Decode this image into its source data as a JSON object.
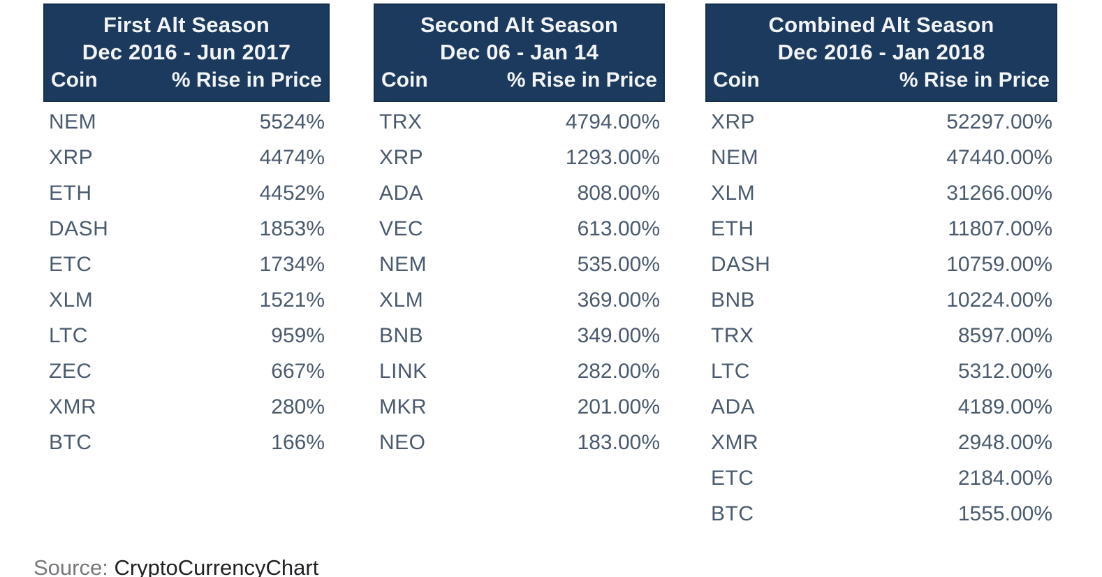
{
  "colors": {
    "header_bg": "#1B3A5E",
    "header_border": "#152F4D",
    "header_text": "#F2F4F6",
    "body_text": "#4A5A6E",
    "source_label_text": "#77787B",
    "source_link_text": "#202124",
    "source_link_underline": "#66C6A2",
    "page_bg": "#FFFFFF"
  },
  "tables": [
    {
      "title_line1": "First Alt Season",
      "title_line2": "Dec 2016 - Jun 2017",
      "col_coin": "Coin",
      "col_rise": "% Rise in Price",
      "rows": [
        {
          "coin": "NEM",
          "rise": "5524%"
        },
        {
          "coin": "XRP",
          "rise": "4474%"
        },
        {
          "coin": "ETH",
          "rise": "4452%"
        },
        {
          "coin": "DASH",
          "rise": "1853%"
        },
        {
          "coin": "ETC",
          "rise": "1734%"
        },
        {
          "coin": "XLM",
          "rise": "1521%"
        },
        {
          "coin": "LTC",
          "rise": "959%"
        },
        {
          "coin": "ZEC",
          "rise": "667%"
        },
        {
          "coin": "XMR",
          "rise": "280%"
        },
        {
          "coin": "BTC",
          "rise": "166%"
        }
      ]
    },
    {
      "title_line1": "Second Alt Season",
      "title_line2": "Dec 06 - Jan 14",
      "col_coin": "Coin",
      "col_rise": "% Rise in Price",
      "rows": [
        {
          "coin": "TRX",
          "rise": "4794.00%"
        },
        {
          "coin": "XRP",
          "rise": "1293.00%"
        },
        {
          "coin": "ADA",
          "rise": "808.00%"
        },
        {
          "coin": "VEC",
          "rise": "613.00%"
        },
        {
          "coin": "NEM",
          "rise": "535.00%"
        },
        {
          "coin": "XLM",
          "rise": "369.00%"
        },
        {
          "coin": "BNB",
          "rise": "349.00%"
        },
        {
          "coin": "LINK",
          "rise": "282.00%"
        },
        {
          "coin": "MKR",
          "rise": "201.00%"
        },
        {
          "coin": "NEO",
          "rise": "183.00%"
        }
      ]
    },
    {
      "title_line1": "Combined Alt Season",
      "title_line2": "Dec 2016 - Jan 2018",
      "col_coin": "Coin",
      "col_rise": "% Rise in Price",
      "rows": [
        {
          "coin": "XRP",
          "rise": "52297.00%"
        },
        {
          "coin": "NEM",
          "rise": "47440.00%"
        },
        {
          "coin": "XLM",
          "rise": "31266.00%"
        },
        {
          "coin": "ETH",
          "rise": "11807.00%"
        },
        {
          "coin": "DASH",
          "rise": "10759.00%"
        },
        {
          "coin": "BNB",
          "rise": "10224.00%"
        },
        {
          "coin": "TRX",
          "rise": "8597.00%"
        },
        {
          "coin": "LTC",
          "rise": "5312.00%"
        },
        {
          "coin": "ADA",
          "rise": "4189.00%"
        },
        {
          "coin": "XMR",
          "rise": "2948.00%"
        },
        {
          "coin": "ETC",
          "rise": "2184.00%"
        },
        {
          "coin": "BTC",
          "rise": "1555.00%"
        }
      ]
    }
  ],
  "source": {
    "label": "Source: ",
    "link": "CryptoCurrencyChart"
  },
  "chart_data": [
    {
      "type": "table",
      "title": "First Alt Season Dec 2016 - Jun 2017",
      "columns": [
        "Coin",
        "% Rise in Price"
      ],
      "rows": [
        [
          "NEM",
          "5524%"
        ],
        [
          "XRP",
          "4474%"
        ],
        [
          "ETH",
          "4452%"
        ],
        [
          "DASH",
          "1853%"
        ],
        [
          "ETC",
          "1734%"
        ],
        [
          "XLM",
          "1521%"
        ],
        [
          "LTC",
          "959%"
        ],
        [
          "ZEC",
          "667%"
        ],
        [
          "XMR",
          "280%"
        ],
        [
          "BTC",
          "166%"
        ]
      ]
    },
    {
      "type": "table",
      "title": "Second Alt Season Dec 06 - Jan 14",
      "columns": [
        "Coin",
        "% Rise in Price"
      ],
      "rows": [
        [
          "TRX",
          "4794.00%"
        ],
        [
          "XRP",
          "1293.00%"
        ],
        [
          "ADA",
          "808.00%"
        ],
        [
          "VEC",
          "613.00%"
        ],
        [
          "NEM",
          "535.00%"
        ],
        [
          "XLM",
          "369.00%"
        ],
        [
          "BNB",
          "349.00%"
        ],
        [
          "LINK",
          "282.00%"
        ],
        [
          "MKR",
          "201.00%"
        ],
        [
          "NEO",
          "183.00%"
        ]
      ]
    },
    {
      "type": "table",
      "title": "Combined Alt Season Dec 2016 - Jan 2018",
      "columns": [
        "Coin",
        "% Rise in Price"
      ],
      "rows": [
        [
          "XRP",
          "52297.00%"
        ],
        [
          "NEM",
          "47440.00%"
        ],
        [
          "XLM",
          "31266.00%"
        ],
        [
          "ETH",
          "11807.00%"
        ],
        [
          "DASH",
          "10759.00%"
        ],
        [
          "BNB",
          "10224.00%"
        ],
        [
          "TRX",
          "8597.00%"
        ],
        [
          "LTC",
          "5312.00%"
        ],
        [
          "ADA",
          "4189.00%"
        ],
        [
          "XMR",
          "2948.00%"
        ],
        [
          "ETC",
          "2184.00%"
        ],
        [
          "BTC",
          "1555.00%"
        ]
      ]
    }
  ]
}
